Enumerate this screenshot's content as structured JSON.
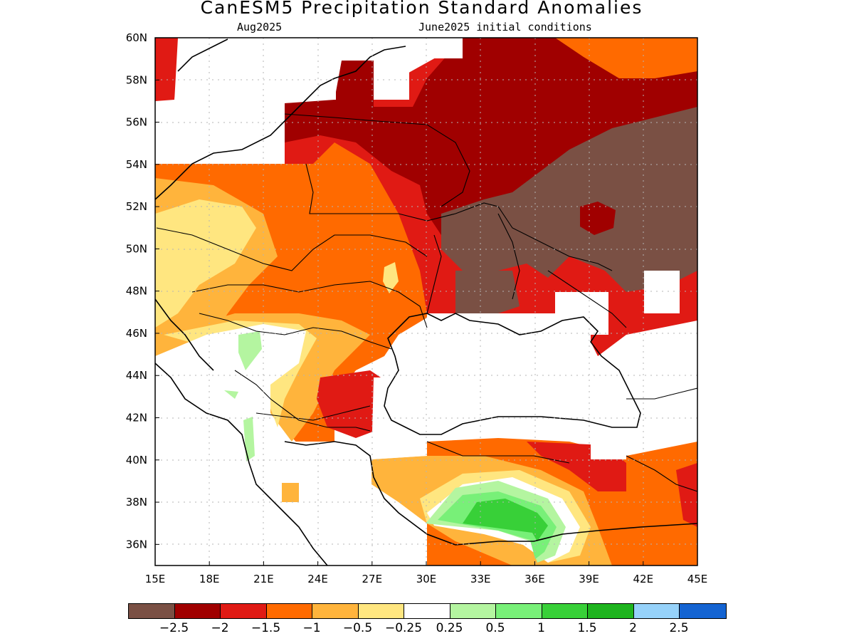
{
  "title": "CanESM5 Precipitation Standard Anomalies",
  "subtitle_left": "Aug2025",
  "subtitle_right": "June2025 initial conditions",
  "map": {
    "lon_range": [
      15,
      45
    ],
    "lat_range": [
      35,
      60
    ],
    "lat_ticks": [
      "60N",
      "58N",
      "56N",
      "54N",
      "52N",
      "50N",
      "48N",
      "46N",
      "44N",
      "42N",
      "40N",
      "38N",
      "36N"
    ],
    "lon_ticks": [
      "15E",
      "18E",
      "21E",
      "24E",
      "27E",
      "30E",
      "33E",
      "36E",
      "39E",
      "42E",
      "45E"
    ],
    "grid": true
  },
  "colorbar": {
    "colors": [
      "#7a5044",
      "#a00000",
      "#e01a14",
      "#ff6a00",
      "#ffb43c",
      "#ffe680",
      "#ffffff",
      "#b4f5a0",
      "#78f078",
      "#38d038",
      "#1eb41e",
      "#96d2fa",
      "#1464d2"
    ],
    "labels": [
      "−2.5",
      "−2",
      "−1.5",
      "−1",
      "−0.5",
      "−0.25",
      "0.25",
      "0.5",
      "1",
      "1.5",
      "2",
      "2.5"
    ]
  }
}
